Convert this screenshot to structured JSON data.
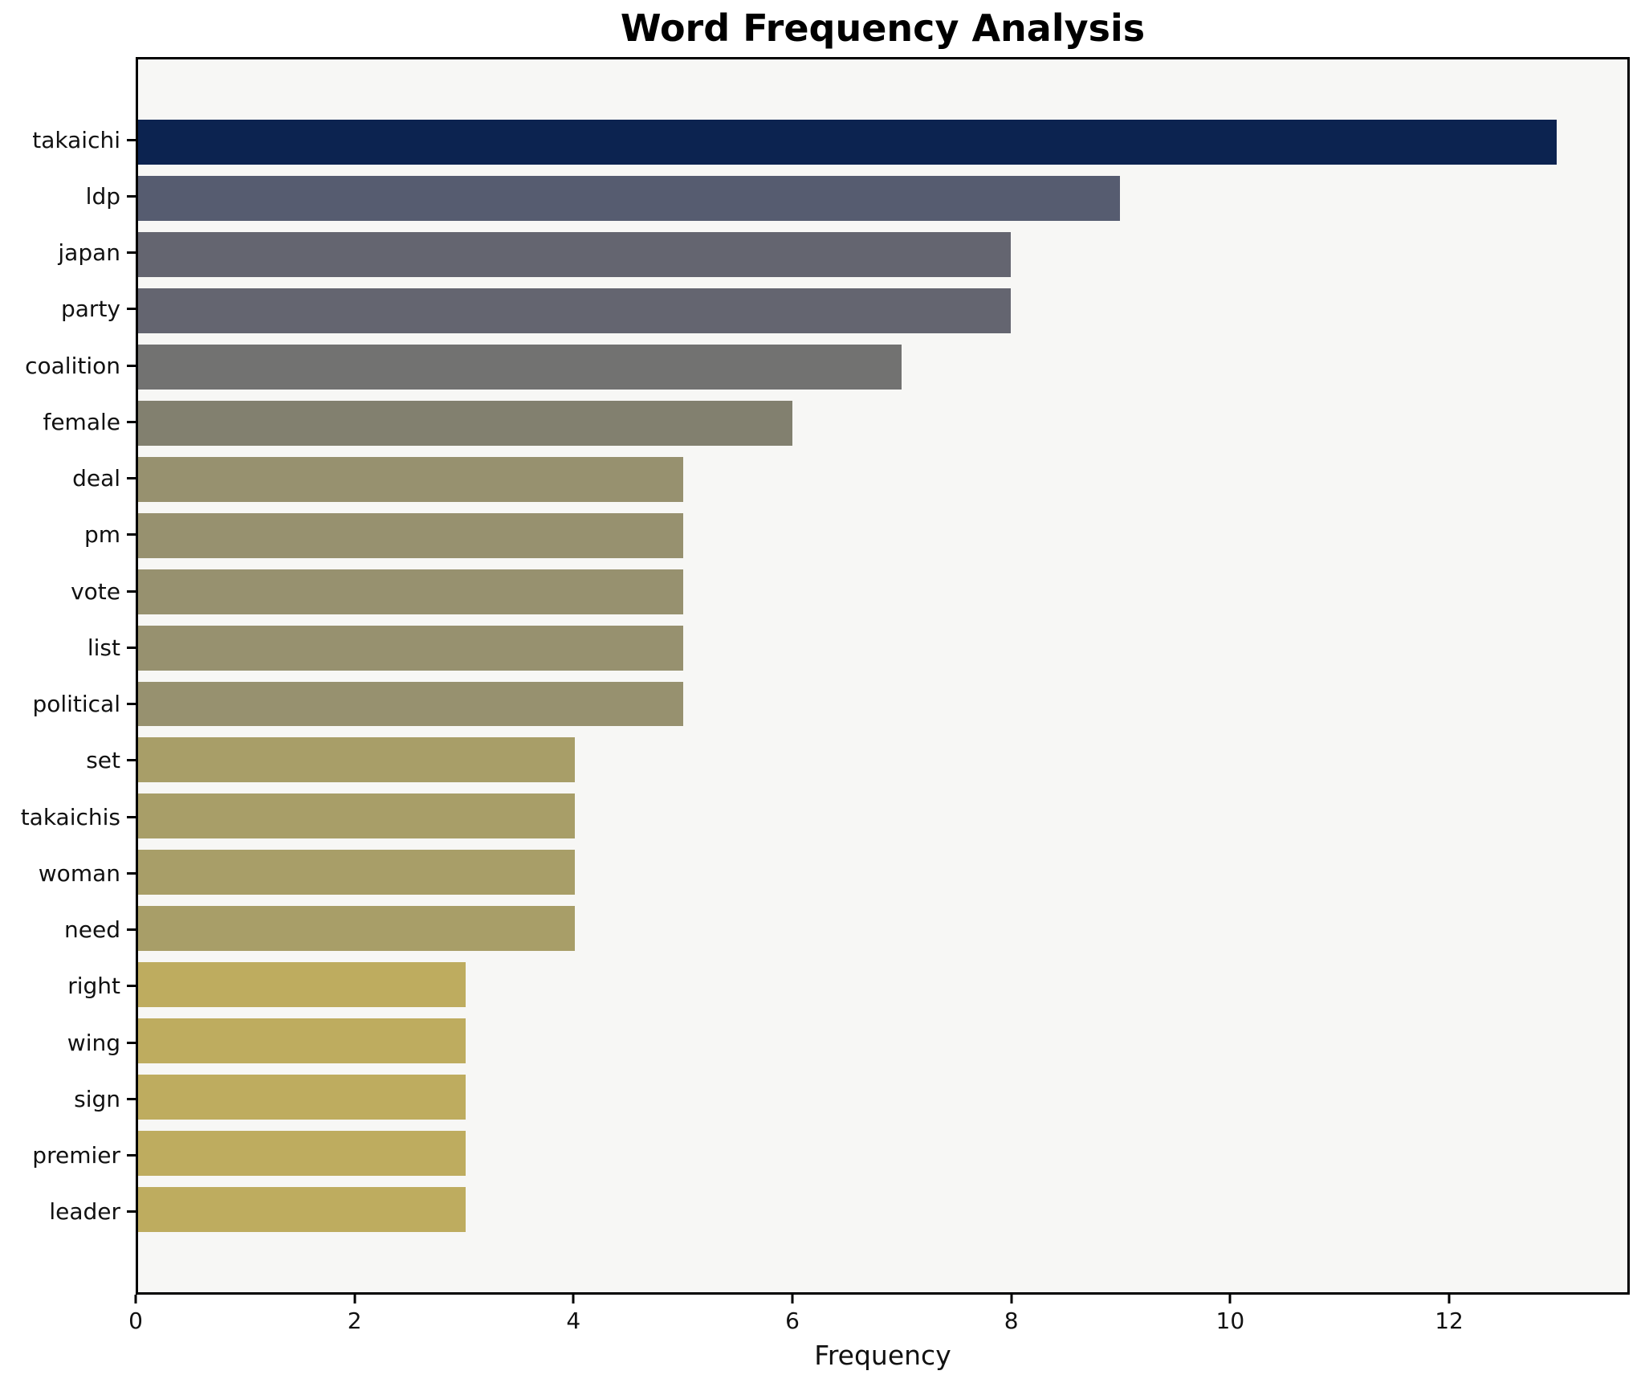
{
  "title": "Word Frequency Analysis",
  "chart_data": {
    "type": "bar",
    "orientation": "horizontal",
    "title": "Word Frequency Analysis",
    "xlabel": "Frequency",
    "ylabel": "",
    "categories": [
      "takaichi",
      "ldp",
      "japan",
      "party",
      "coalition",
      "female",
      "deal",
      "pm",
      "vote",
      "list",
      "political",
      "set",
      "takaichis",
      "woman",
      "need",
      "right",
      "wing",
      "sign",
      "premier",
      "leader"
    ],
    "values": [
      13,
      9,
      8,
      8,
      7,
      6,
      5,
      5,
      5,
      5,
      5,
      4,
      4,
      4,
      4,
      3,
      3,
      3,
      3,
      3
    ],
    "bar_colors": [
      "#0c2350",
      "#565c70",
      "#646570",
      "#646570",
      "#727271",
      "#82806f",
      "#97916f",
      "#97916f",
      "#97916f",
      "#97916f",
      "#97916f",
      "#a89e68",
      "#a89e68",
      "#a89e68",
      "#a89e68",
      "#beac5f",
      "#beac5f",
      "#beac5f",
      "#beac5f",
      "#beac5f"
    ],
    "xlim": [
      0,
      13.65
    ],
    "xticks": [
      0,
      2,
      4,
      6,
      8,
      10,
      12
    ],
    "grid": false,
    "legend": null,
    "bar_height_fraction": 0.8,
    "plot_bg": "#f7f7f5",
    "figure_bg": "#ffffff",
    "spine_color": "#000000",
    "tick_color": "#000000",
    "text_color": "#111111"
  }
}
